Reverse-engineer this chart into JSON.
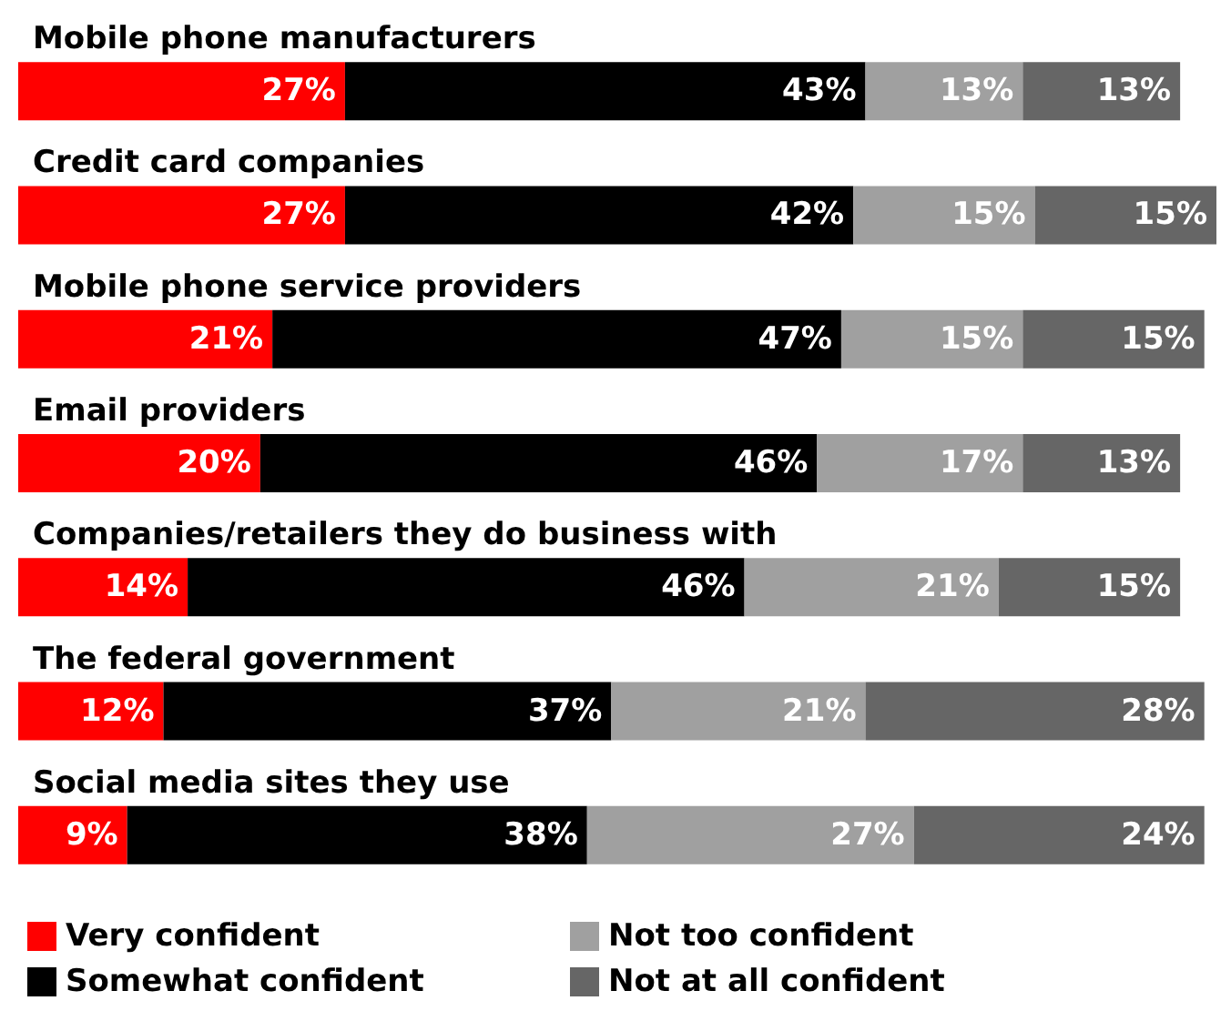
{
  "chart_data": {
    "type": "bar",
    "orientation": "horizontal",
    "stacked": true,
    "categories": [
      "Mobile phone manufacturers",
      "Credit card companies",
      "Mobile phone service providers",
      "Email providers",
      "Companies/retailers they do business with",
      "The federal government",
      "Social media sites they use"
    ],
    "xlim": [
      0,
      99
    ],
    "tick_labels": "y",
    "legend": "bottom",
    "series": [
      {
        "name": "Very confident",
        "color": "#ff0000",
        "values": [
          27,
          27,
          21,
          20,
          14,
          12,
          9
        ],
        "value_labels": [
          "27%",
          "27%",
          "21%",
          "20%",
          "14%",
          "12%",
          "9%"
        ]
      },
      {
        "name": "Somewhat confident",
        "color": "#000000",
        "values": [
          43,
          42,
          47,
          46,
          46,
          37,
          38
        ],
        "value_labels": [
          "43%",
          "42%",
          "47%",
          "46%",
          "46%",
          "37%",
          "38%"
        ]
      },
      {
        "name": "Not too confident",
        "color": "#a0a0a0",
        "values": [
          13,
          15,
          15,
          17,
          21,
          21,
          27
        ],
        "value_labels": [
          "13%",
          "15%",
          "15%",
          "17%",
          "21%",
          "21%",
          "27%"
        ]
      },
      {
        "name": "Not at all confident",
        "color": "#666666",
        "values": [
          13,
          15,
          15,
          13,
          15,
          28,
          24
        ],
        "value_labels": [
          "13%",
          "15%",
          "15%",
          "13%",
          "15%",
          "28%",
          "24%"
        ]
      }
    ]
  }
}
